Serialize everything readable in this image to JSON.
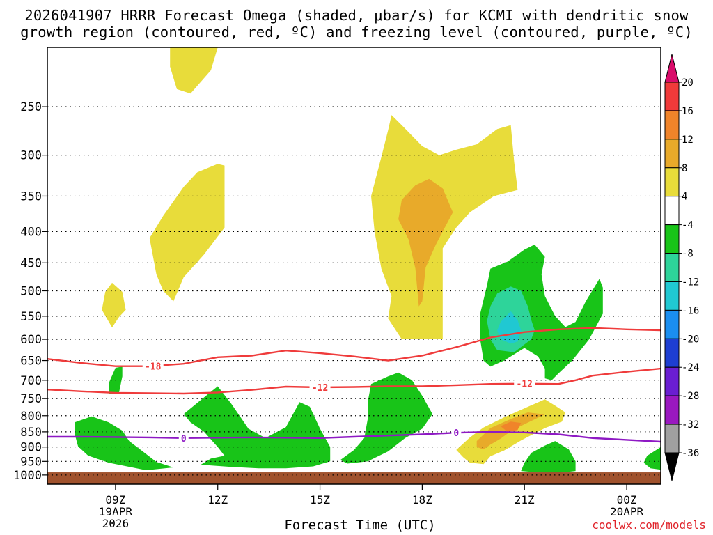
{
  "header": {
    "title_line1": "2026041907 HRRR Forecast Omega (shaded, μbar/s) for KCMI with dendritic snow",
    "title_line2": "growth region (contoured, red, ºC) and freezing level (contoured, purple, ºC)"
  },
  "credit": "coolwx.com/models",
  "chart_data": {
    "type": "contour",
    "xlabel": "Forecast Time (UTC)",
    "x_ticks": [
      {
        "hour": 9,
        "label": "09Z",
        "sub1": "19APR",
        "sub2": "2026"
      },
      {
        "hour": 12,
        "label": "12Z",
        "sub1": "",
        "sub2": ""
      },
      {
        "hour": 15,
        "label": "15Z",
        "sub1": "",
        "sub2": ""
      },
      {
        "hour": 18,
        "label": "18Z",
        "sub1": "",
        "sub2": ""
      },
      {
        "hour": 21,
        "label": "21Z",
        "sub1": "",
        "sub2": ""
      },
      {
        "hour": 24,
        "label": "00Z",
        "sub1": "20APR",
        "sub2": ""
      }
    ],
    "xlim_hours": [
      7,
      25
    ],
    "y_ticks": [
      250,
      300,
      350,
      400,
      450,
      500,
      550,
      600,
      650,
      700,
      750,
      800,
      850,
      900,
      950,
      1000
    ],
    "ylim_hPa": [
      200,
      1035
    ],
    "grid": true,
    "colorbar": {
      "labels": [
        "20",
        "16",
        "12",
        "8",
        "4",
        "-4",
        "-8",
        "-12",
        "-16",
        "-20",
        "-24",
        "-28",
        "-32",
        "-36"
      ],
      "colors": [
        "#d90c6a",
        "#f03a3a",
        "#f0842a",
        "#e8aa2a",
        "#e8dc3a",
        "#ffffff",
        "#18c418",
        "#2ed49a",
        "#20c8d2",
        "#1a8ef0",
        "#1e3ed2",
        "#6a1ed2",
        "#9a18c0",
        "#a0a0a0",
        "#000000"
      ]
    },
    "colors": {
      "ground": "#a0522d",
      "dgz_contour": "#ef3b3b",
      "freezing_contour": "#8e19c4",
      "omega_4_8": "#e8dc3a",
      "omega_8_12": "#e8aa2a",
      "omega_12_16": "#f0842a",
      "omega_neg4_neg8": "#18c418",
      "omega_neg8_neg12": "#2ed49a",
      "omega_neg12_neg16": "#20c8d2"
    },
    "contours": [
      {
        "name": "dgz_minus18",
        "label": "-18",
        "points": [
          [
            7.0,
            646
          ],
          [
            8.0,
            656
          ],
          [
            9.0,
            664
          ],
          [
            10.0,
            664
          ],
          [
            11.0,
            658
          ],
          [
            12.0,
            642
          ],
          [
            13.0,
            638
          ],
          [
            14.0,
            626
          ],
          [
            15.0,
            632
          ],
          [
            16.0,
            640
          ],
          [
            17.0,
            650
          ],
          [
            18.0,
            638
          ],
          [
            19.0,
            618
          ],
          [
            20.0,
            596
          ],
          [
            21.0,
            584
          ],
          [
            22.0,
            578
          ],
          [
            23.0,
            575
          ],
          [
            24.0,
            578
          ],
          [
            25.0,
            580
          ]
        ]
      },
      {
        "name": "dgz_minus12",
        "label": "-12",
        "points": [
          [
            7.0,
            725
          ],
          [
            8.0,
            730
          ],
          [
            9.0,
            734
          ],
          [
            10.0,
            735
          ],
          [
            11.0,
            736
          ],
          [
            12.0,
            733
          ],
          [
            13.0,
            726
          ],
          [
            14.0,
            717
          ],
          [
            15.0,
            719
          ],
          [
            16.0,
            718
          ],
          [
            17.0,
            716
          ],
          [
            18.0,
            716
          ],
          [
            19.0,
            713
          ],
          [
            20.0,
            710
          ],
          [
            21.0,
            709
          ],
          [
            22.0,
            710
          ],
          [
            22.5,
            700
          ],
          [
            23.0,
            688
          ],
          [
            24.0,
            678
          ],
          [
            25.0,
            670
          ]
        ]
      },
      {
        "name": "freezing_level_0",
        "label": "0",
        "points": [
          [
            7.0,
            866
          ],
          [
            8.0,
            866
          ],
          [
            9.0,
            867
          ],
          [
            10.0,
            868
          ],
          [
            11.0,
            870
          ],
          [
            12.0,
            869
          ],
          [
            13.0,
            868
          ],
          [
            14.0,
            869
          ],
          [
            15.0,
            870
          ],
          [
            16.0,
            866
          ],
          [
            17.0,
            862
          ],
          [
            18.0,
            858
          ],
          [
            19.0,
            853
          ],
          [
            20.0,
            850
          ],
          [
            21.0,
            852
          ],
          [
            22.0,
            858
          ],
          [
            23.0,
            870
          ],
          [
            24.0,
            876
          ],
          [
            25.0,
            882
          ]
        ]
      }
    ],
    "regions": [
      {
        "band": "4 to 8",
        "points": [
          [
            10.6,
            200
          ],
          [
            12.0,
            200
          ],
          [
            11.8,
            218
          ],
          [
            11.2,
            238
          ],
          [
            10.8,
            234
          ],
          [
            10.6,
            215
          ]
        ]
      },
      {
        "band": "4 to 8",
        "points": [
          [
            12.0,
            310
          ],
          [
            12.2,
            312
          ],
          [
            12.2,
            394
          ],
          [
            11.6,
            436
          ],
          [
            11.0,
            475
          ],
          [
            10.7,
            520
          ],
          [
            10.4,
            500
          ],
          [
            10.2,
            470
          ],
          [
            10.0,
            410
          ],
          [
            10.4,
            377
          ],
          [
            11.0,
            338
          ],
          [
            11.4,
            320
          ]
        ]
      },
      {
        "band": "4 to 8",
        "points": [
          [
            8.9,
            485
          ],
          [
            9.2,
            502
          ],
          [
            9.3,
            537
          ],
          [
            9.1,
            552
          ],
          [
            8.9,
            574
          ],
          [
            8.6,
            537
          ],
          [
            8.7,
            502
          ]
        ]
      },
      {
        "band": "4 to 8",
        "points": [
          [
            16.8,
            302
          ],
          [
            17.0,
            273
          ],
          [
            17.1,
            258
          ],
          [
            17.4,
            268
          ],
          [
            18.0,
            290
          ],
          [
            18.5,
            300
          ],
          [
            19.0,
            294
          ],
          [
            19.6,
            288
          ],
          [
            20.2,
            272
          ],
          [
            20.6,
            268
          ],
          [
            20.7,
            308
          ],
          [
            20.8,
            342
          ],
          [
            20.1,
            350
          ],
          [
            19.4,
            372
          ],
          [
            19.0,
            394
          ],
          [
            18.6,
            426
          ],
          [
            18.6,
            600
          ],
          [
            17.4,
            600
          ],
          [
            17.0,
            555
          ],
          [
            17.1,
            510
          ],
          [
            16.8,
            460
          ],
          [
            16.6,
            400
          ],
          [
            16.5,
            350
          ]
        ]
      },
      {
        "band": "8 to 12",
        "points": [
          [
            17.4,
            355
          ],
          [
            17.8,
            336
          ],
          [
            18.2,
            328
          ],
          [
            18.6,
            340
          ],
          [
            18.9,
            372
          ],
          [
            18.4,
            420
          ],
          [
            18.1,
            458
          ],
          [
            18.0,
            520
          ],
          [
            17.9,
            530
          ],
          [
            17.8,
            460
          ],
          [
            17.6,
            412
          ],
          [
            17.3,
            382
          ]
        ]
      },
      {
        "band": "4 to 8",
        "points": [
          [
            19.4,
            868
          ],
          [
            19.8,
            836
          ],
          [
            20.4,
            805
          ],
          [
            21.0,
            778
          ],
          [
            21.6,
            752
          ],
          [
            21.9,
            770
          ],
          [
            22.2,
            790
          ],
          [
            22.1,
            818
          ],
          [
            21.6,
            838
          ],
          [
            20.9,
            878
          ],
          [
            20.4,
            912
          ],
          [
            20.0,
            932
          ],
          [
            19.8,
            960
          ],
          [
            19.4,
            955
          ],
          [
            19.2,
            935
          ],
          [
            19.0,
            910
          ]
        ]
      },
      {
        "band": "8 to 12",
        "points": [
          [
            19.6,
            880
          ],
          [
            20.0,
            838
          ],
          [
            20.6,
            810
          ],
          [
            21.1,
            790
          ],
          [
            21.6,
            796
          ],
          [
            21.0,
            826
          ],
          [
            20.6,
            848
          ],
          [
            20.3,
            872
          ],
          [
            20.0,
            892
          ],
          [
            19.8,
            908
          ],
          [
            19.6,
            900
          ]
        ]
      },
      {
        "band": "12 to 16",
        "points": [
          [
            20.3,
            832
          ],
          [
            20.6,
            818
          ],
          [
            20.9,
            822
          ],
          [
            20.8,
            844
          ],
          [
            20.5,
            850
          ]
        ]
      },
      {
        "band": "-4 to -8",
        "points": [
          [
            8.8,
            708
          ],
          [
            9.0,
            668
          ],
          [
            9.2,
            665
          ],
          [
            9.2,
            690
          ],
          [
            9.1,
            735
          ],
          [
            8.8,
            738
          ]
        ]
      },
      {
        "band": "-4 to -8",
        "points": [
          [
            7.8,
            820
          ],
          [
            8.3,
            802
          ],
          [
            8.8,
            820
          ],
          [
            9.2,
            846
          ],
          [
            9.4,
            880
          ],
          [
            9.8,
            915
          ],
          [
            10.2,
            952
          ],
          [
            10.7,
            972
          ],
          [
            9.9,
            982
          ],
          [
            8.8,
            955
          ],
          [
            8.2,
            930
          ],
          [
            7.9,
            898
          ],
          [
            7.8,
            856
          ]
        ]
      },
      {
        "band": "-4 to -8",
        "points": [
          [
            11.0,
            795
          ],
          [
            11.4,
            762
          ],
          [
            12.0,
            716
          ],
          [
            12.4,
            765
          ],
          [
            12.9,
            840
          ],
          [
            13.4,
            870
          ],
          [
            14.0,
            835
          ],
          [
            14.4,
            760
          ],
          [
            14.7,
            773
          ],
          [
            15.0,
            840
          ],
          [
            15.3,
            900
          ],
          [
            15.3,
            950
          ],
          [
            14.8,
            968
          ],
          [
            14.0,
            975
          ],
          [
            13.2,
            975
          ],
          [
            12.4,
            970
          ],
          [
            11.5,
            962
          ],
          [
            11.8,
            940
          ],
          [
            12.2,
            930
          ],
          [
            12.0,
            900
          ],
          [
            11.6,
            850
          ],
          [
            11.2,
            820
          ]
        ]
      },
      {
        "band": "-4 to -8",
        "points": [
          [
            16.5,
            710
          ],
          [
            17.0,
            690
          ],
          [
            17.3,
            680
          ],
          [
            17.7,
            700
          ],
          [
            18.0,
            742
          ],
          [
            18.3,
            795
          ],
          [
            18.0,
            840
          ],
          [
            17.5,
            870
          ],
          [
            17.0,
            915
          ],
          [
            16.4,
            950
          ],
          [
            15.8,
            958
          ],
          [
            15.6,
            945
          ],
          [
            16.0,
            910
          ],
          [
            16.3,
            870
          ],
          [
            16.4,
            810
          ],
          [
            16.4,
            760
          ]
        ]
      },
      {
        "band": "-4 to -8",
        "points": [
          [
            20.0,
            460
          ],
          [
            20.5,
            448
          ],
          [
            21.0,
            428
          ],
          [
            21.3,
            420
          ],
          [
            21.6,
            440
          ],
          [
            21.5,
            470
          ],
          [
            21.6,
            510
          ],
          [
            21.9,
            550
          ],
          [
            22.2,
            573
          ],
          [
            22.5,
            562
          ],
          [
            22.8,
            520
          ],
          [
            23.2,
            478
          ],
          [
            23.3,
            494
          ],
          [
            23.3,
            545
          ],
          [
            22.9,
            600
          ],
          [
            22.4,
            650
          ],
          [
            22.0,
            682
          ],
          [
            21.8,
            700
          ],
          [
            21.6,
            695
          ],
          [
            21.6,
            670
          ],
          [
            21.4,
            640
          ],
          [
            21.0,
            620
          ],
          [
            20.4,
            650
          ],
          [
            20.0,
            665
          ],
          [
            19.8,
            650
          ],
          [
            19.7,
            600
          ],
          [
            19.7,
            545
          ],
          [
            19.9,
            490
          ]
        ]
      },
      {
        "band": "-8 to -12",
        "points": [
          [
            20.2,
            505
          ],
          [
            20.6,
            492
          ],
          [
            20.9,
            500
          ],
          [
            21.1,
            530
          ],
          [
            21.2,
            558
          ],
          [
            21.3,
            580
          ],
          [
            21.2,
            600
          ],
          [
            20.7,
            630
          ],
          [
            20.2,
            625
          ],
          [
            20.0,
            600
          ],
          [
            19.9,
            560
          ],
          [
            20.0,
            530
          ]
        ]
      },
      {
        "band": "-12 to -16",
        "points": [
          [
            20.3,
            562
          ],
          [
            20.6,
            540
          ],
          [
            20.8,
            558
          ],
          [
            20.9,
            580
          ],
          [
            20.8,
            605
          ],
          [
            20.6,
            610
          ],
          [
            20.3,
            600
          ],
          [
            20.2,
            580
          ]
        ]
      },
      {
        "band": "-4 to -8",
        "points": [
          [
            21.2,
            920
          ],
          [
            21.6,
            895
          ],
          [
            21.9,
            880
          ],
          [
            22.3,
            908
          ],
          [
            22.5,
            950
          ],
          [
            22.5,
            985
          ],
          [
            22.0,
            992
          ],
          [
            21.4,
            990
          ],
          [
            20.9,
            985
          ],
          [
            21.0,
            955
          ]
        ]
      },
      {
        "band": "-4 to -8",
        "points": [
          [
            24.6,
            930
          ],
          [
            25.0,
            900
          ],
          [
            25.0,
            980
          ],
          [
            24.7,
            975
          ],
          [
            24.5,
            955
          ]
        ]
      }
    ]
  }
}
